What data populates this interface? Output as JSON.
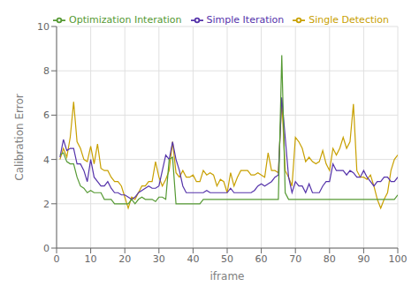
{
  "chart_data": {
    "type": "line",
    "xlabel": "iframe",
    "ylabel": "Calibration Error",
    "x": [
      1,
      2,
      3,
      4,
      5,
      6,
      7,
      8,
      9,
      10,
      11,
      12,
      13,
      14,
      15,
      16,
      17,
      18,
      19,
      20,
      21,
      22,
      23,
      24,
      25,
      26,
      27,
      28,
      29,
      30,
      31,
      32,
      33,
      34,
      35,
      36,
      37,
      38,
      39,
      40,
      41,
      42,
      43,
      44,
      45,
      46,
      47,
      48,
      49,
      50,
      51,
      52,
      53,
      54,
      55,
      56,
      57,
      58,
      59,
      60,
      61,
      62,
      63,
      64,
      65,
      66,
      67,
      68,
      69,
      70,
      71,
      72,
      73,
      74,
      75,
      76,
      77,
      78,
      79,
      80,
      81,
      82,
      83,
      84,
      85,
      86,
      87,
      88,
      89,
      90,
      91,
      92,
      93,
      94,
      95,
      96,
      97,
      98,
      99,
      100
    ],
    "series": [
      {
        "name": "Single Detection",
        "color": "#c8a000",
        "values": [
          4.0,
          4.5,
          4.1,
          5.0,
          6.6,
          4.8,
          4.5,
          4.0,
          3.9,
          4.6,
          3.8,
          4.7,
          3.6,
          3.5,
          3.5,
          3.2,
          3.0,
          3.0,
          2.8,
          2.3,
          1.8,
          2.3,
          2.2,
          2.5,
          2.8,
          2.8,
          3.0,
          3.0,
          3.9,
          3.2,
          2.8,
          3.1,
          3.5,
          4.8,
          3.4,
          3.2,
          3.5,
          3.2,
          3.2,
          3.3,
          3.0,
          3.0,
          3.5,
          3.3,
          3.4,
          3.3,
          2.8,
          3.1,
          3.0,
          2.5,
          3.4,
          2.8,
          3.2,
          3.5,
          3.5,
          3.5,
          3.3,
          3.3,
          3.4,
          3.3,
          3.2,
          4.3,
          3.5,
          3.5,
          3.4,
          6.7,
          3.5,
          3.2,
          2.8,
          5.0,
          4.8,
          4.5,
          3.9,
          4.1,
          3.9,
          3.8,
          3.9,
          4.4,
          3.8,
          3.5,
          4.5,
          4.2,
          4.5,
          5.0,
          4.5,
          4.8,
          6.5,
          3.5,
          3.2,
          3.2,
          3.1,
          3.3,
          2.8,
          2.2,
          1.8,
          2.2,
          2.5,
          3.5,
          4.0,
          4.2
        ]
      },
      {
        "name": "Simple Iteration",
        "color": "#5533aa",
        "values": [
          4.1,
          4.9,
          4.4,
          4.5,
          4.5,
          3.8,
          3.8,
          3.5,
          3.0,
          4.0,
          3.2,
          3.0,
          2.8,
          2.8,
          3.0,
          2.7,
          2.5,
          2.5,
          2.4,
          2.4,
          2.3,
          2.2,
          2.3,
          2.5,
          2.6,
          2.7,
          2.8,
          2.7,
          2.7,
          2.8,
          3.5,
          4.2,
          4.0,
          4.8,
          4.0,
          3.5,
          2.8,
          2.5,
          2.5,
          2.5,
          2.5,
          2.5,
          2.5,
          2.6,
          2.5,
          2.5,
          2.5,
          2.5,
          2.5,
          2.5,
          2.7,
          2.5,
          2.5,
          2.5,
          2.5,
          2.5,
          2.5,
          2.6,
          2.8,
          2.9,
          2.8,
          2.9,
          3.0,
          3.2,
          3.3,
          6.8,
          5.0,
          3.2,
          2.5,
          3.0,
          2.8,
          2.8,
          2.5,
          2.9,
          2.5,
          2.5,
          2.5,
          2.8,
          3.0,
          3.0,
          3.8,
          3.5,
          3.5,
          3.5,
          3.3,
          3.5,
          3.4,
          3.2,
          3.2,
          3.5,
          3.2,
          3.0,
          2.8,
          3.0,
          3.0,
          3.2,
          3.2,
          3.0,
          3.0,
          3.2
        ]
      },
      {
        "name": "Optimization Interation",
        "color": "#559933",
        "values": [
          4.2,
          4.3,
          3.9,
          3.8,
          3.8,
          3.2,
          2.8,
          2.7,
          2.5,
          2.6,
          2.5,
          2.5,
          2.5,
          2.2,
          2.2,
          2.2,
          2.0,
          2.0,
          2.0,
          2.0,
          2.0,
          2.2,
          2.0,
          2.2,
          2.3,
          2.2,
          2.2,
          2.2,
          2.1,
          2.3,
          2.3,
          2.2,
          4.0,
          4.1,
          2.0,
          2.0,
          2.0,
          2.0,
          2.0,
          2.0,
          2.0,
          2.0,
          2.2,
          2.2,
          2.2,
          2.2,
          2.2,
          2.2,
          2.2,
          2.2,
          2.2,
          2.2,
          2.2,
          2.2,
          2.2,
          2.2,
          2.2,
          2.2,
          2.2,
          2.2,
          2.2,
          2.2,
          2.2,
          2.2,
          2.2,
          8.7,
          2.5,
          2.2,
          2.2,
          2.2,
          2.2,
          2.2,
          2.2,
          2.2,
          2.2,
          2.2,
          2.2,
          2.2,
          2.2,
          2.2,
          2.2,
          2.2,
          2.2,
          2.2,
          2.2,
          2.2,
          2.2,
          2.2,
          2.2,
          2.2,
          2.2,
          2.2,
          2.2,
          2.2,
          2.2,
          2.2,
          2.2,
          2.2,
          2.2,
          2.4
        ]
      }
    ],
    "xlim": [
      0,
      100
    ],
    "ylim": [
      0,
      10
    ],
    "xticks": [
      0,
      10,
      20,
      30,
      40,
      50,
      60,
      70,
      80,
      90,
      100
    ],
    "yticks": [
      0,
      2,
      4,
      6,
      8,
      10
    ],
    "grid": true,
    "legend": "upper right"
  }
}
